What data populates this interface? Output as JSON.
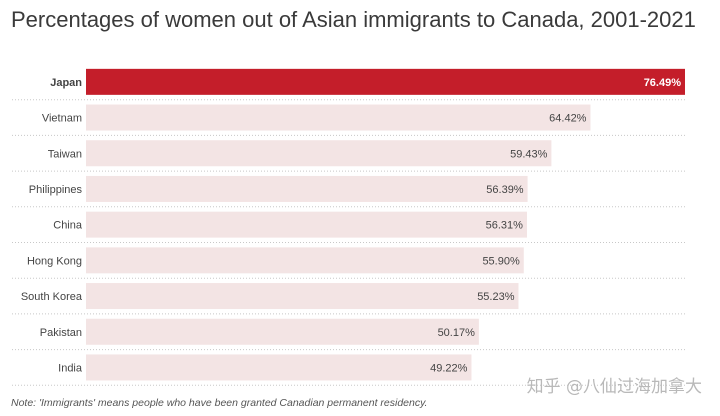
{
  "title": "Percentages of women out of Asian immigrants to Canada, 2001-2021",
  "note": "Note: 'Immigrants' means people who have been granted Canadian permanent residency.",
  "watermark": "知乎 @八仙过海加拿大",
  "colors": {
    "highlight": "#c41e2a",
    "bar": "#f3e4e4",
    "highlight_text": "#ffffff",
    "label_text": "#444444",
    "divider": "#c8c8c8"
  },
  "chart_data": {
    "type": "bar",
    "orientation": "horizontal",
    "categories": [
      "Japan",
      "Vietnam",
      "Taiwan",
      "Philippines",
      "China",
      "Hong Kong",
      "South Korea",
      "Pakistan",
      "India"
    ],
    "values": [
      76.49,
      64.42,
      59.43,
      56.39,
      56.31,
      55.9,
      55.23,
      50.17,
      49.22
    ],
    "value_labels": [
      "76.49%",
      "64.42%",
      "59.43%",
      "56.39%",
      "56.31%",
      "55.90%",
      "55.23%",
      "50.17%",
      "49.22%"
    ],
    "highlighted_category": "Japan",
    "xlim": [
      0,
      76.49
    ]
  }
}
